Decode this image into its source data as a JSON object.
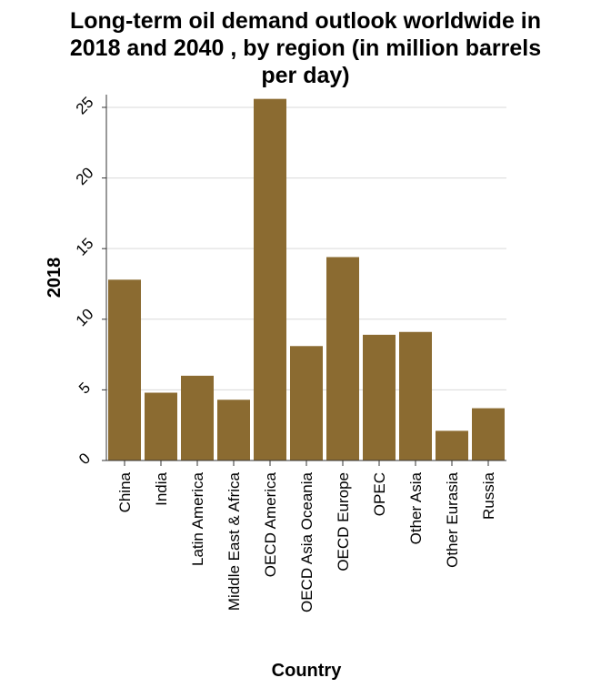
{
  "chart_data": {
    "type": "bar",
    "title_lines": [
      "Long-term oil demand outlook worldwide in",
      "2018 and 2040 , by region (in million barrels",
      "per day)"
    ],
    "xlabel": "Country",
    "ylabel": "2018",
    "categories": [
      "China",
      "India",
      "Latin America",
      "Middle East & Africa",
      "OECD America",
      "OECD Asia Oceania",
      "OECD Europe",
      "OPEC",
      "Other Asia",
      "Other Eurasia",
      "Russia"
    ],
    "values": [
      12.8,
      4.8,
      6.0,
      4.3,
      25.6,
      8.1,
      14.4,
      8.9,
      9.1,
      2.1,
      3.7
    ],
    "ylim": [
      0,
      25.9
    ],
    "yticks": [
      0,
      5,
      10,
      15,
      20,
      25
    ],
    "grid": true,
    "bar_color": "#8b6b31"
  }
}
